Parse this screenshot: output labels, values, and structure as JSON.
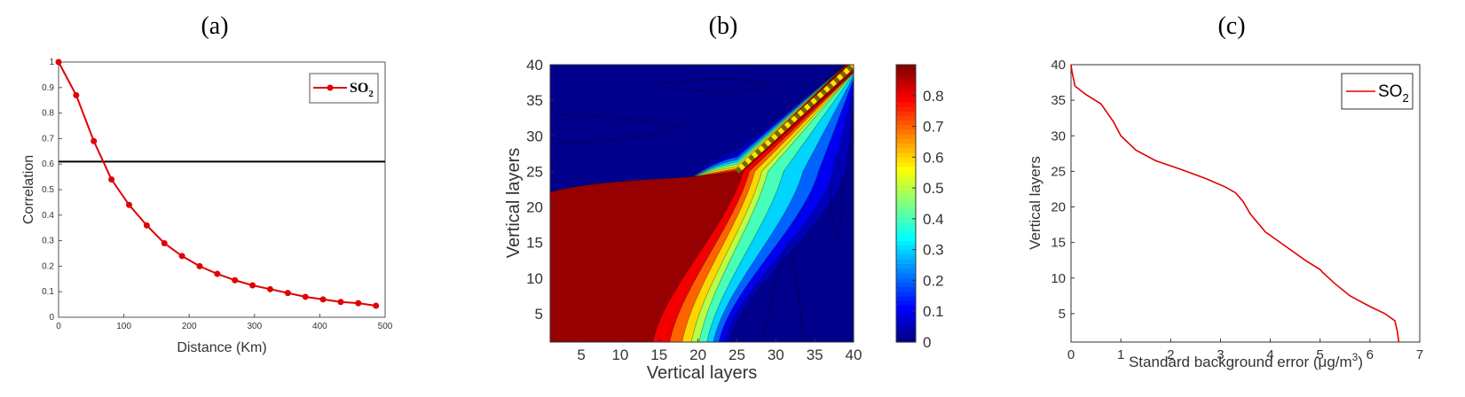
{
  "panel_titles": [
    "(a)",
    "(b)",
    "(c)"
  ],
  "chart_data": [
    {
      "type": "line",
      "panel": "(a)",
      "xlabel": "Distance (Km)",
      "ylabel": "Correlation",
      "xlim": [
        0,
        500
      ],
      "ylim": [
        0,
        1
      ],
      "xticks": [
        "0",
        "100",
        "200",
        "300",
        "400",
        "500"
      ],
      "yticks": [
        "0",
        "0.1",
        "0.2",
        "0.3",
        "0.4",
        "0.5",
        "0.6",
        "0.7",
        "0.8",
        "0.9",
        "1"
      ],
      "series": [
        {
          "name": "SO2",
          "color": "#e00000",
          "marker": "circle",
          "x": [
            0,
            27,
            54,
            81,
            108,
            135,
            162,
            189,
            216,
            243,
            270,
            297,
            324,
            351,
            378,
            405,
            432,
            459,
            486
          ],
          "y": [
            1.0,
            0.87,
            0.69,
            0.54,
            0.44,
            0.36,
            0.29,
            0.24,
            0.2,
            0.17,
            0.145,
            0.125,
            0.11,
            0.095,
            0.08,
            0.07,
            0.06,
            0.055,
            0.045
          ]
        }
      ],
      "reference_line": {
        "y": 0.61,
        "color": "#000000"
      },
      "legend": {
        "position": "top-right",
        "label_main": "SO",
        "label_sub": "2"
      }
    },
    {
      "type": "heatmap",
      "panel": "(b)",
      "xlabel": "Vertical layers",
      "ylabel": "Vertical layers",
      "xlim": [
        1,
        40
      ],
      "ylim": [
        1,
        40
      ],
      "xticks": [
        "5",
        "10",
        "15",
        "20",
        "25",
        "30",
        "35",
        "40"
      ],
      "yticks": [
        "5",
        "10",
        "15",
        "20",
        "25",
        "30",
        "35",
        "40"
      ],
      "colorbar": {
        "min": 0,
        "max": 0.9,
        "ticks": [
          "0",
          "0.1",
          "0.2",
          "0.3",
          "0.4",
          "0.5",
          "0.6",
          "0.7",
          "0.8"
        ]
      },
      "colormap": "jet"
    },
    {
      "type": "line",
      "panel": "(c)",
      "xlabel": "Standard background error (μg/m³)",
      "xlabel_parts": [
        "Standard background error (",
        "μ",
        "g/m",
        "3",
        ")"
      ],
      "ylabel": "Vertical layers",
      "xlim": [
        0,
        7
      ],
      "ylim": [
        1,
        40
      ],
      "xticks": [
        "0",
        "1",
        "2",
        "3",
        "4",
        "5",
        "6",
        "7"
      ],
      "yticks": [
        "5",
        "10",
        "15",
        "20",
        "25",
        "30",
        "35",
        "40"
      ],
      "series": [
        {
          "name": "SO2",
          "color": "#e00000",
          "x": [
            0.0,
            0.02,
            0.08,
            0.3,
            0.6,
            0.85,
            1.0,
            1.3,
            1.7,
            2.2,
            2.7,
            3.1,
            3.3,
            3.45,
            3.6,
            3.9,
            4.3,
            4.7,
            5.0,
            5.05,
            5.3,
            5.6,
            6.0,
            6.3,
            6.5,
            6.55,
            6.58
          ],
          "y": [
            40,
            39,
            37,
            35.8,
            34.5,
            32,
            30,
            28,
            26.5,
            25.3,
            24,
            22.8,
            22,
            20.8,
            19,
            16.5,
            14.5,
            12.5,
            11.2,
            10.8,
            9.2,
            7.5,
            6,
            5,
            4,
            2.5,
            1
          ]
        }
      ],
      "legend": {
        "position": "top-right",
        "label_main": "SO",
        "label_sub": "2"
      }
    }
  ]
}
